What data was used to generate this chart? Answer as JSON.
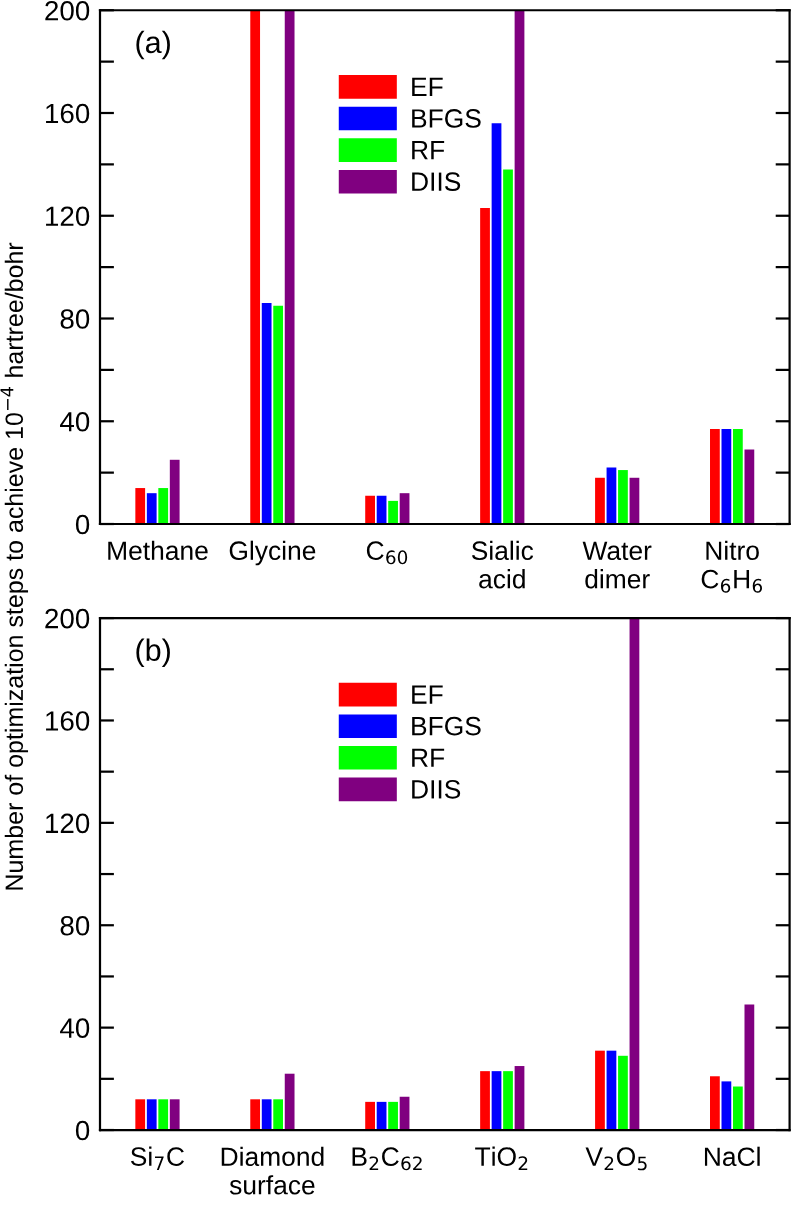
{
  "chart_data": [
    {
      "type": "bar",
      "ylabel": "Number of optimization steps to achieve 10$^{−4}$ hartree/bohr",
      "annotations": [
        "(a)"
      ],
      "categories": [
        "Methane",
        "Glycine",
        "C$_{60}$",
        "Sialic\nacid",
        "Water\ndimer",
        "Nitro\nC$_{6}$H$_{6}$"
      ],
      "series": [
        {
          "name": "EF",
          "color": "#ff0000",
          "values": [
            14,
            200,
            11,
            123,
            18,
            37
          ]
        },
        {
          "name": "BFGS",
          "color": "#0000ff",
          "values": [
            12,
            86,
            11,
            156,
            22,
            37
          ]
        },
        {
          "name": "RF",
          "color": "#00ff00",
          "values": [
            14,
            85,
            9,
            138,
            21,
            37
          ]
        },
        {
          "name": "DIIS",
          "color": "#800080",
          "values": [
            25,
            200,
            12,
            200,
            18,
            29
          ]
        }
      ],
      "ylim": [
        0,
        200
      ],
      "yticks": [
        0,
        {
          "value": 20,
          "label": null
        },
        40,
        {
          "value": 60,
          "label": null
        },
        80,
        {
          "value": 100,
          "label": null
        },
        120,
        {
          "value": 140,
          "label": null
        },
        160,
        {
          "value": 180,
          "label": null
        },
        200
      ],
      "legend": "top",
      "grid": false
    },
    {
      "type": "bar",
      "annotations": [
        "(b)"
      ],
      "categories": [
        "Si$_{7}$C",
        "Diamond\nsurface",
        "B$_{2}$C$_{62}$",
        "TiO$_{2}$",
        "V$_{2}$O$_{5}$",
        "NaCl"
      ],
      "series": [
        {
          "name": "EF",
          "color": "#ff0000",
          "values": [
            12,
            12,
            11,
            23,
            31,
            21
          ]
        },
        {
          "name": "BFGS",
          "color": "#0000ff",
          "values": [
            12,
            12,
            11,
            23,
            31,
            19
          ]
        },
        {
          "name": "RF",
          "color": "#00ff00",
          "values": [
            12,
            12,
            11,
            23,
            29,
            17
          ]
        },
        {
          "name": "DIIS",
          "color": "#800080",
          "values": [
            12,
            22,
            13,
            25,
            200,
            49
          ]
        }
      ],
      "ylim": [
        0,
        200
      ],
      "yticks": [
        0,
        {
          "value": 20,
          "label": null
        },
        40,
        {
          "value": 60,
          "label": null
        },
        80,
        {
          "value": 100,
          "label": null
        },
        120,
        {
          "value": 140,
          "label": null
        },
        160,
        {
          "value": 180,
          "label": null
        },
        200
      ],
      "legend": "top",
      "grid": false
    }
  ]
}
